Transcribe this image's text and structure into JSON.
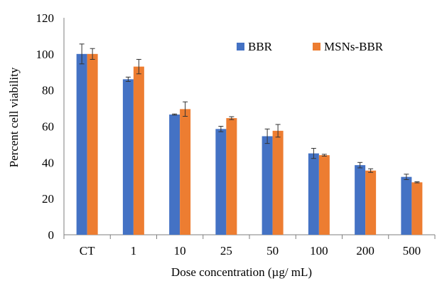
{
  "chart_data": {
    "type": "bar",
    "categories": [
      "CT",
      "1",
      "10",
      "25",
      "50",
      "100",
      "200",
      "500"
    ],
    "series": [
      {
        "name": "BBR",
        "color": "#4472C4",
        "values": [
          100,
          86,
          66.5,
          58.5,
          54.5,
          45,
          38.5,
          32
        ],
        "errors": [
          5.5,
          1.2,
          0.3,
          1.5,
          4,
          2.8,
          1.5,
          1.5
        ]
      },
      {
        "name": "MSNs-BBR",
        "color": "#ED7D31",
        "values": [
          100,
          93,
          69.5,
          64.5,
          57.5,
          44,
          35.5,
          29
        ],
        "errors": [
          3,
          4,
          4,
          0.8,
          3.5,
          0.5,
          1,
          0.3
        ]
      }
    ],
    "xlabel": "Dose concentration  (µg/ mL)",
    "ylabel": "Percent cell viability",
    "ylim": [
      0,
      120
    ],
    "yticks": [
      0,
      20,
      40,
      60,
      80,
      100,
      120
    ],
    "grid": false,
    "legend": "top-right"
  }
}
